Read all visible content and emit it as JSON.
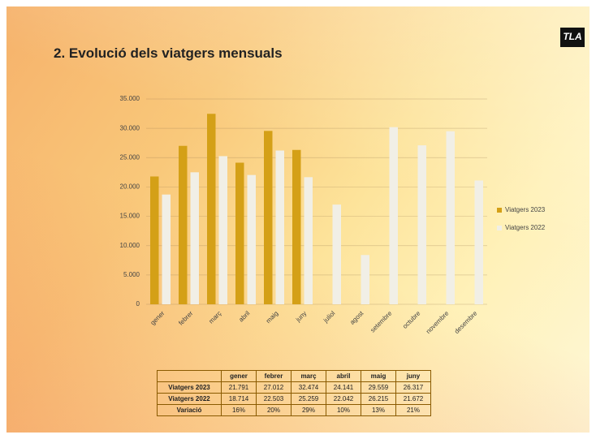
{
  "title": "2. Evolució dels viatgers mensuals",
  "logo": "TLA",
  "chart_data": {
    "type": "bar",
    "categories": [
      "gener",
      "febrer",
      "març",
      "abril",
      "maig",
      "juny",
      "juliol",
      "agost",
      "setembre",
      "octubre",
      "novembre",
      "desembre"
    ],
    "series": [
      {
        "name": "Viatgers 2023",
        "color": "#d4a017",
        "values": [
          21791,
          27012,
          32474,
          24141,
          29559,
          26317,
          null,
          null,
          null,
          null,
          null,
          null
        ]
      },
      {
        "name": "Viatgers 2022",
        "color": "#f1efe6",
        "values": [
          18714,
          22503,
          25259,
          22042,
          26215,
          21672,
          17000,
          8400,
          30200,
          27100,
          29500,
          21100
        ]
      }
    ],
    "ylim": [
      0,
      35000
    ],
    "yticks": [
      0,
      {
        "value": 5000,
        "label": "5.000"
      },
      {
        "value": 10000,
        "label": "10.000"
      },
      {
        "value": 15000,
        "label": "15.000"
      },
      {
        "value": 20000,
        "label": "20.000"
      },
      {
        "value": 25000,
        "label": "25.000"
      },
      {
        "value": 30000,
        "label": "30.000"
      },
      {
        "value": 35000,
        "label": "35.000"
      }
    ],
    "grid": true,
    "legend": "right"
  },
  "table": {
    "header": [
      "gener",
      "febrer",
      "març",
      "abril",
      "maig",
      "juny"
    ],
    "rows": [
      [
        "Viatgers 2023",
        "21.791",
        "27.012",
        "32.474",
        "24.141",
        "29.559",
        "26.317"
      ],
      [
        "Viatgers 2022",
        "18.714",
        "22.503",
        "25.259",
        "22.042",
        "26.215",
        "21.672"
      ],
      [
        "Variació",
        "16%",
        "20%",
        "29%",
        "10%",
        "13%",
        "21%"
      ]
    ]
  }
}
